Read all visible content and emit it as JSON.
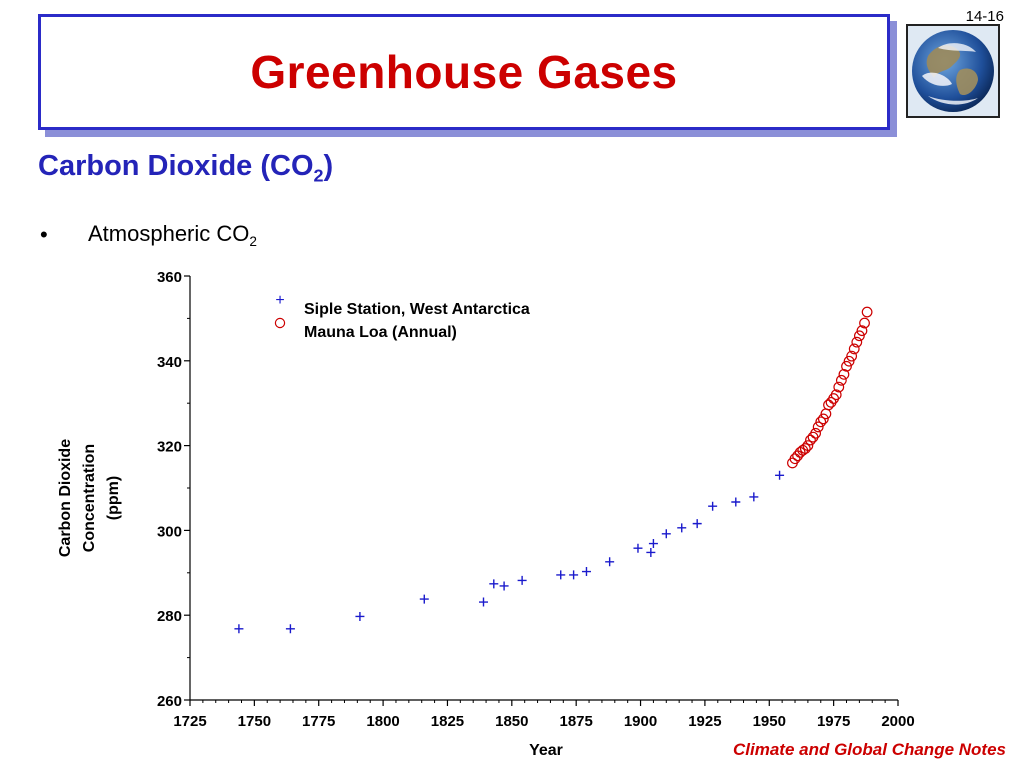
{
  "slide_number": "14-16",
  "title": "Greenhouse Gases",
  "subtitle": {
    "main": "Carbon Dioxide (CO",
    "sub": "2",
    "tail": ")"
  },
  "bullet": {
    "symbol": "•",
    "text": "Atmospheric CO",
    "sub": "2"
  },
  "footer": "Climate and Global Change Notes",
  "icons": {
    "globe": "earth-globe-icon"
  },
  "colors": {
    "title": "#cc0000",
    "subtitle": "#2424b8",
    "frame": "#2b2bc8",
    "series_siple": "#1a1acc",
    "series_mauna": "#cc0000"
  },
  "chart_data": {
    "type": "scatter",
    "xlabel": "Year",
    "ylabel_lines": [
      "Carbon Dioxide",
      "Concentration",
      "(ppm)"
    ],
    "xlim": [
      1725,
      2000
    ],
    "ylim": [
      260,
      360
    ],
    "xticks": [
      1725,
      1750,
      1775,
      1800,
      1825,
      1850,
      1875,
      1900,
      1925,
      1950,
      1975,
      2000
    ],
    "yticks": [
      260,
      280,
      300,
      320,
      340,
      360
    ],
    "legend_position": "top-left",
    "series": [
      {
        "name": "Siple Station, West Antarctica",
        "marker": "plus",
        "color": "#1a1acc",
        "points": [
          [
            1744,
            276.8
          ],
          [
            1764,
            276.8
          ],
          [
            1791,
            279.7
          ],
          [
            1816,
            283.8
          ],
          [
            1839,
            283.1
          ],
          [
            1843,
            287.4
          ],
          [
            1847,
            286.9
          ],
          [
            1854,
            288.2
          ],
          [
            1869,
            289.5
          ],
          [
            1874,
            289.5
          ],
          [
            1879,
            290.3
          ],
          [
            1888,
            292.6
          ],
          [
            1899,
            295.8
          ],
          [
            1904,
            294.8
          ],
          [
            1905,
            296.9
          ],
          [
            1910,
            299.2
          ],
          [
            1916,
            300.6
          ],
          [
            1922,
            301.6
          ],
          [
            1928,
            305.7
          ],
          [
            1937,
            306.7
          ],
          [
            1944,
            307.9
          ],
          [
            1954,
            313.0
          ]
        ]
      },
      {
        "name": "Mauna Loa (Annual)",
        "marker": "circle",
        "color": "#cc0000",
        "points": [
          [
            1959,
            315.9
          ],
          [
            1960,
            316.9
          ],
          [
            1961,
            317.6
          ],
          [
            1962,
            318.4
          ],
          [
            1963,
            318.9
          ],
          [
            1964,
            319.3
          ],
          [
            1965,
            320.0
          ],
          [
            1966,
            321.3
          ],
          [
            1967,
            322.0
          ],
          [
            1968,
            322.9
          ],
          [
            1969,
            324.4
          ],
          [
            1970,
            325.6
          ],
          [
            1971,
            326.3
          ],
          [
            1972,
            327.5
          ],
          [
            1973,
            329.6
          ],
          [
            1974,
            330.2
          ],
          [
            1975,
            331.1
          ],
          [
            1976,
            332.0
          ],
          [
            1977,
            333.8
          ],
          [
            1978,
            335.4
          ],
          [
            1979,
            336.8
          ],
          [
            1980,
            338.7
          ],
          [
            1981,
            339.9
          ],
          [
            1982,
            341.1
          ],
          [
            1983,
            342.8
          ],
          [
            1984,
            344.4
          ],
          [
            1985,
            345.9
          ],
          [
            1986,
            347.1
          ],
          [
            1987,
            348.9
          ],
          [
            1988,
            351.5
          ]
        ]
      }
    ]
  }
}
